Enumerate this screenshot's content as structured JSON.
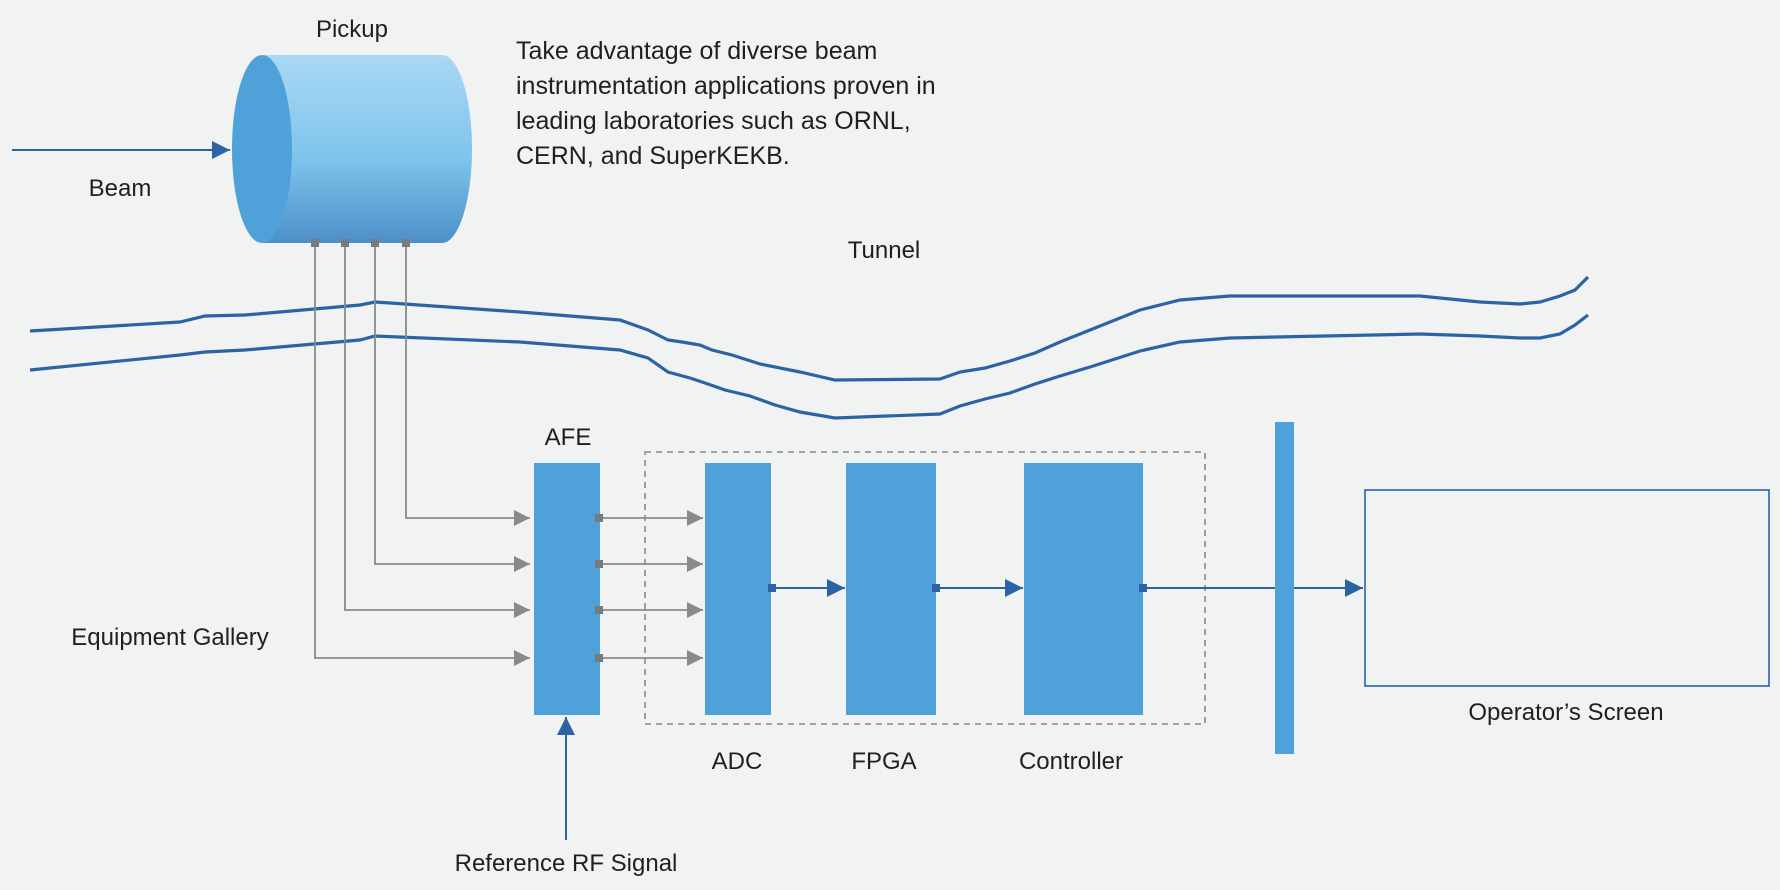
{
  "labels": {
    "pickup": "Pickup",
    "beam": "Beam",
    "tunnel": "Tunnel",
    "afe": "AFE",
    "adc": "ADC",
    "fpga": "FPGA",
    "controller": "Controller",
    "equipment_gallery": "Equipment Gallery",
    "reference_rf_signal": "Reference RF Signal",
    "operators_screen": "Operator’s Screen"
  },
  "description": "Take advantage of diverse beam instrumentation applications proven in leading laboratories such as ORNL, CERN, and SuperKEKB.",
  "colors": {
    "background": "#f1f2f2",
    "block_blue": "#4fa1d9",
    "line_dark_blue": "#2c63a5",
    "connector_gray": "#8a8a8a",
    "text": "#1f1f1f"
  }
}
